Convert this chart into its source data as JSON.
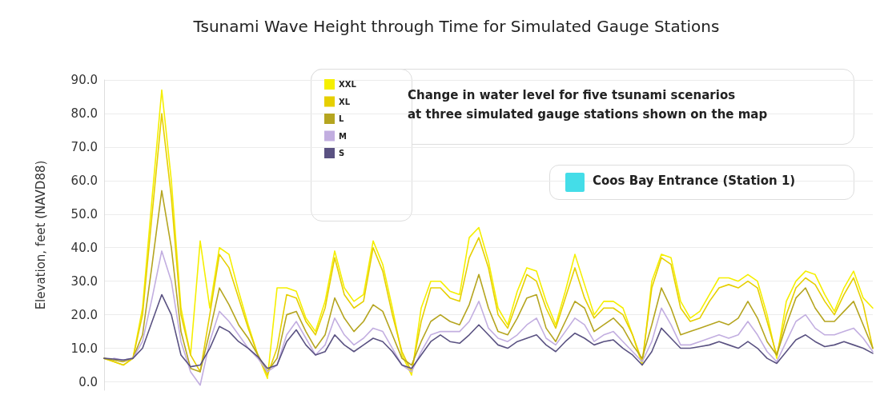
{
  "chart_data": {
    "type": "line",
    "title": "Tsunami Wave Height through Time for Simulated Gauge Stations",
    "ylabel": "Elevation, feet (NAVD88)",
    "categories": [
      null,
      null,
      null,
      null,
      null,
      null,
      null,
      null,
      null,
      null,
      null,
      null,
      null,
      null,
      null,
      null,
      null,
      null,
      null,
      null,
      null,
      null,
      null,
      null,
      null,
      null,
      null,
      null,
      null,
      null,
      null,
      null,
      null,
      null,
      null,
      null,
      null,
      null,
      null,
      null,
      null,
      null,
      null,
      null,
      null,
      null,
      null,
      null,
      null,
      null,
      null,
      null,
      null,
      null,
      null,
      null,
      null,
      null,
      null,
      null,
      null,
      null,
      null,
      null,
      null,
      null,
      null,
      null,
      null,
      null,
      null,
      null,
      null,
      null,
      null,
      null,
      null,
      null,
      null,
      null,
      null
    ],
    "series": [
      {
        "name": "XXL",
        "color": "#f5ef00",
        "values": [
          7,
          6,
          5,
          7,
          22,
          55,
          87,
          60,
          22,
          8,
          42,
          22,
          40,
          38,
          27,
          17,
          8,
          1,
          28,
          28,
          27,
          19,
          15,
          24,
          39,
          28,
          24,
          26,
          42,
          35,
          22,
          8,
          2,
          22,
          30,
          30,
          27,
          26,
          43,
          46,
          36,
          22,
          17,
          27,
          34,
          33,
          24,
          17,
          27,
          38,
          29,
          20,
          24,
          24,
          22,
          14,
          5,
          30,
          38,
          37,
          24,
          19,
          21,
          26,
          31,
          31,
          30,
          32,
          30,
          20,
          7,
          24,
          30,
          33,
          32,
          26,
          21,
          28,
          33,
          25,
          22
        ]
      },
      {
        "name": "XL",
        "color": "#e6cf00",
        "values": [
          7,
          6,
          5,
          7,
          20,
          50,
          80,
          55,
          20,
          8,
          3,
          20,
          38,
          34,
          25,
          16,
          8,
          2,
          10,
          26,
          25,
          18,
          14,
          22,
          37,
          26,
          22,
          24,
          40,
          33,
          20,
          9,
          3,
          18,
          28,
          28,
          25,
          24,
          37,
          43,
          34,
          20,
          16,
          24,
          32,
          30,
          22,
          16,
          25,
          34,
          25,
          19,
          22,
          22,
          20,
          14,
          6,
          28,
          37,
          35,
          22,
          18,
          19,
          24,
          28,
          29,
          28,
          30,
          28,
          18,
          8,
          20,
          28,
          31,
          29,
          24,
          20,
          26,
          31,
          23,
          10
        ]
      },
      {
        "name": "L",
        "color": "#b5a520",
        "values": [
          7,
          6.5,
          6,
          7,
          14,
          35,
          57,
          40,
          15,
          4,
          3,
          15,
          28,
          23,
          17,
          13,
          8,
          3,
          7,
          20,
          21,
          15,
          10,
          14,
          25,
          19,
          15,
          18,
          23,
          21,
          14,
          7,
          5,
          12,
          18,
          20,
          18,
          17,
          23,
          32,
          22,
          15,
          14,
          19,
          25,
          26,
          16,
          12,
          18,
          24,
          22,
          15,
          17,
          19,
          16,
          11,
          7,
          17,
          28,
          22,
          14,
          15,
          16,
          17,
          18,
          17,
          19,
          24,
          19,
          12,
          8,
          17,
          25,
          28,
          22,
          18,
          18,
          21,
          24,
          17,
          10
        ]
      },
      {
        "name": "M",
        "color": "#c2aee0",
        "values": [
          null,
          7,
          6.5,
          7,
          12,
          25,
          39,
          30,
          12,
          3,
          -1,
          12,
          21,
          18,
          14,
          10,
          7,
          3,
          5,
          14,
          18,
          13,
          8,
          11,
          19,
          14,
          11,
          13,
          16,
          15,
          10,
          5,
          3,
          9,
          14,
          15,
          15,
          15,
          18,
          24,
          16,
          13,
          12,
          14,
          17,
          19,
          13,
          11,
          15,
          19,
          17,
          12,
          14,
          15,
          12,
          9,
          6,
          12,
          22,
          17,
          11,
          11,
          12,
          13,
          14,
          13,
          14,
          18,
          14,
          9,
          6,
          12,
          18,
          20,
          16,
          14,
          14,
          15,
          16,
          13,
          9
        ]
      },
      {
        "name": "S",
        "color": "#5a5282",
        "values": [
          7,
          6.8,
          6.5,
          7,
          10,
          18,
          26,
          20,
          8,
          4.5,
          5,
          10,
          16.5,
          15,
          12,
          10,
          7.5,
          4,
          5,
          12,
          15.5,
          11,
          8,
          9,
          14,
          11,
          9,
          11,
          13,
          12,
          9,
          5,
          4,
          8,
          12,
          14,
          12,
          11.5,
          14,
          17,
          14,
          11,
          10,
          12,
          13,
          14,
          11,
          9,
          12,
          14.5,
          13,
          11,
          12,
          12.5,
          10,
          8,
          5,
          9,
          16,
          13,
          10,
          10,
          10.5,
          11,
          12,
          11,
          10,
          12,
          10,
          7,
          5.5,
          9,
          12.5,
          14,
          12,
          10.5,
          11,
          12,
          11,
          10,
          8.5
        ]
      }
    ],
    "ylim": [
      -2.5,
      90
    ],
    "yticks": [
      {
        "value": 0,
        "label": "0.0"
      },
      {
        "value": 10,
        "label": "10.0"
      },
      {
        "value": 20,
        "label": "20.0"
      },
      {
        "value": 30,
        "label": "30.0"
      },
      {
        "value": 40,
        "label": "40.0"
      },
      {
        "value": 50,
        "label": "50.0"
      },
      {
        "value": 60,
        "label": "60.0"
      },
      {
        "value": 70,
        "label": "70.0"
      },
      {
        "value": 80,
        "label": "80.0"
      },
      {
        "value": 90,
        "label": "90.0"
      }
    ],
    "annotations": [
      "Change in water level for five tsunami scenarios\nat three simulated gauge stations shown on the map",
      "Coos Bay Entrance (Station 1)"
    ],
    "grid": "y",
    "legend": "top",
    "marker": "none",
    "line_style": "solid",
    "tick_labels": "y"
  }
}
